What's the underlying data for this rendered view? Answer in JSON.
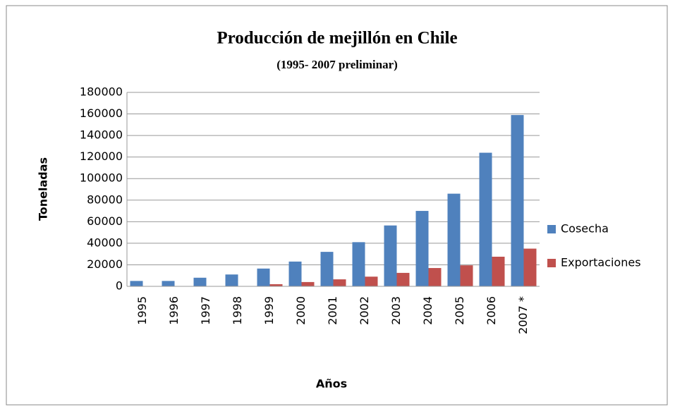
{
  "chart_data": {
    "type": "bar",
    "title": "Producción de mejillón en Chile",
    "subtitle": "(1995- 2007 preliminar)",
    "x_label": "Años",
    "y_label": "Toneladas",
    "categories": [
      "1995",
      "1996",
      "1997",
      "1998",
      "1999",
      "2000",
      "2001",
      "2002",
      "2003",
      "2004",
      "2005",
      "2006",
      "2007 *"
    ],
    "series": [
      {
        "name": "Cosecha",
        "color": "#4f81bd",
        "values": [
          5000,
          5000,
          8000,
          11000,
          16500,
          23000,
          32000,
          41000,
          56500,
          70000,
          86000,
          124000,
          159000
        ]
      },
      {
        "name": "Exportaciones",
        "color": "#c0504d",
        "values": [
          0,
          0,
          0,
          0,
          2000,
          4000,
          6500,
          9000,
          12500,
          17000,
          19500,
          27500,
          35000
        ]
      }
    ],
    "ylim": [
      0,
      180000
    ],
    "yticks": [
      0,
      20000,
      40000,
      60000,
      80000,
      100000,
      120000,
      140000,
      160000,
      180000
    ],
    "grid": true,
    "legend": "right"
  }
}
